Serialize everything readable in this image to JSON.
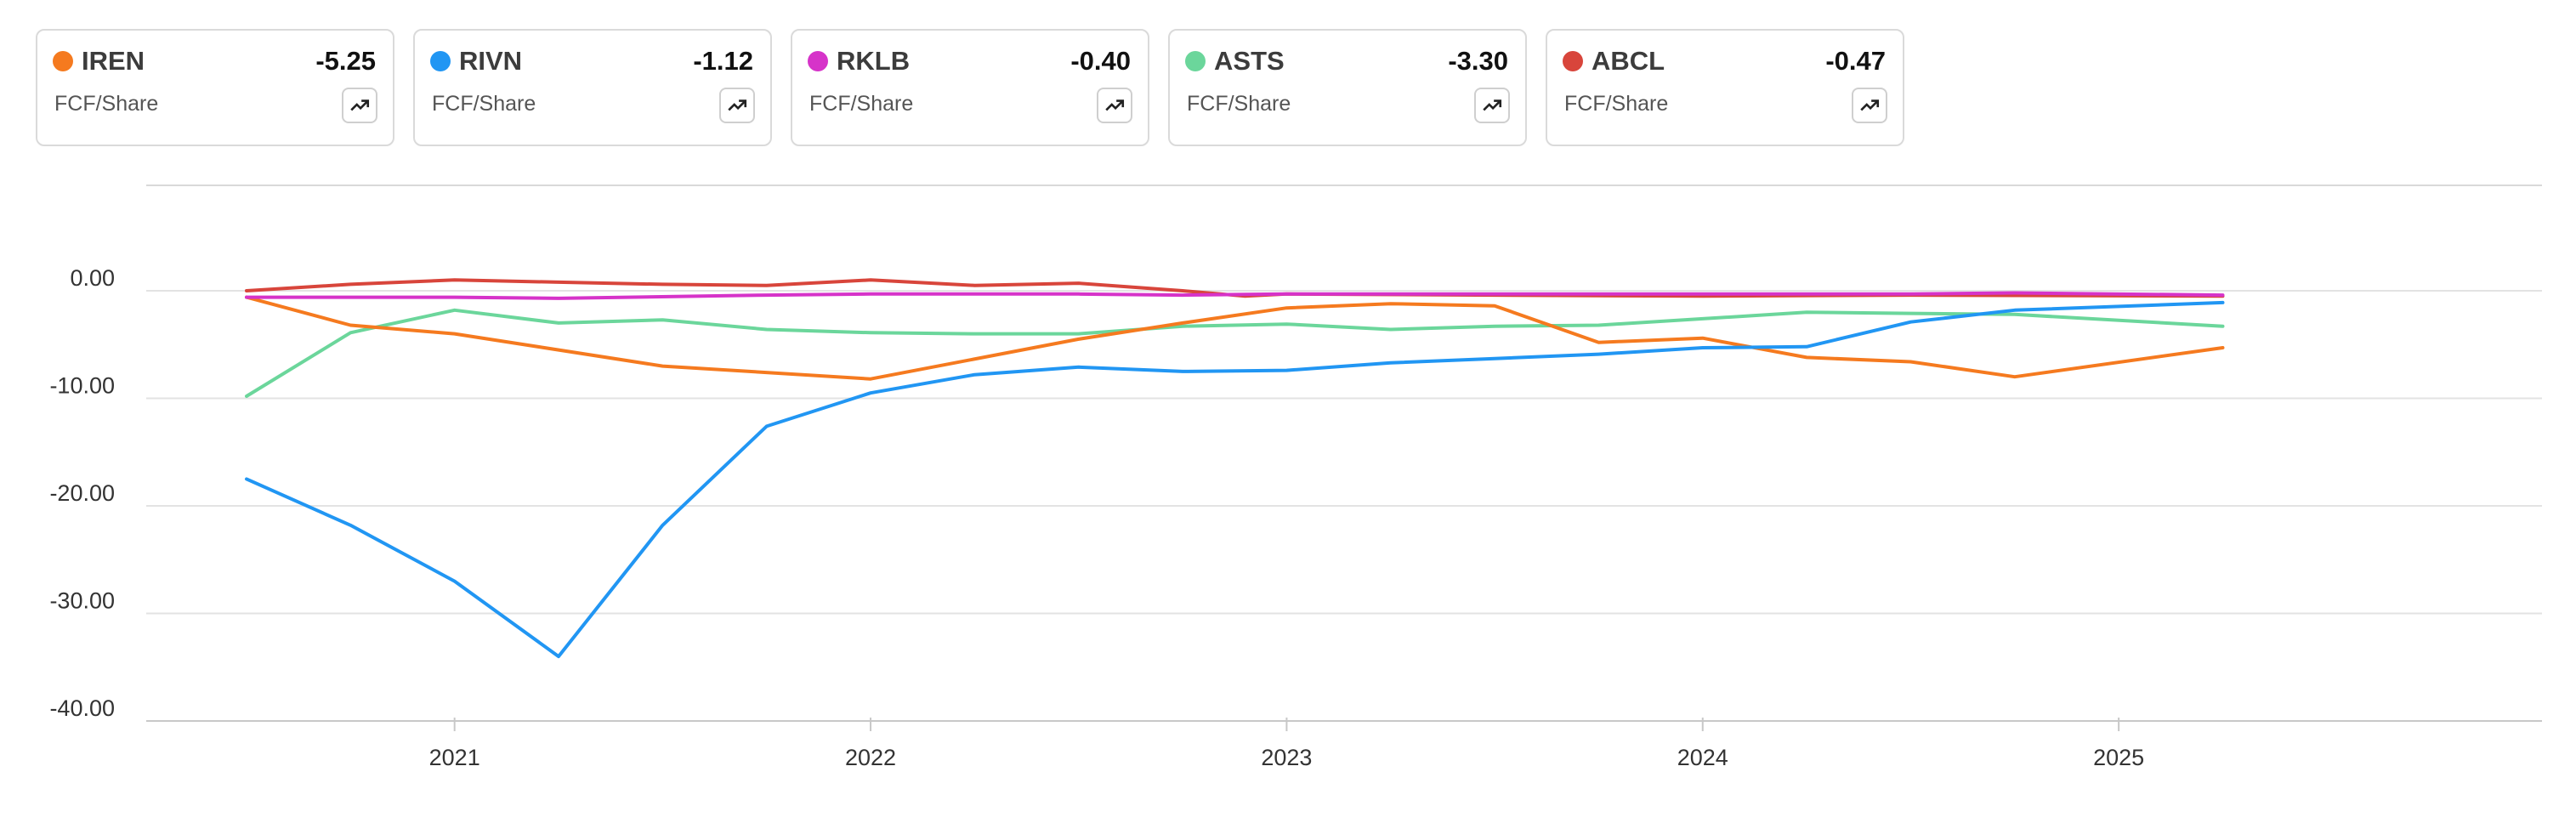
{
  "legend": [
    {
      "ticker": "IREN",
      "value": "-5.25",
      "metric": "FCF/Share",
      "color": "#F57A1F"
    },
    {
      "ticker": "RIVN",
      "value": "-1.12",
      "metric": "FCF/Share",
      "color": "#2196F3"
    },
    {
      "ticker": "RKLB",
      "value": "-0.40",
      "metric": "FCF/Share",
      "color": "#D633C9"
    },
    {
      "ticker": "ASTS",
      "value": "-3.30",
      "metric": "FCF/Share",
      "color": "#6BD69B"
    },
    {
      "ticker": "ABCL",
      "value": "-0.47",
      "metric": "FCF/Share",
      "color": "#D8453B"
    }
  ],
  "chart_data": {
    "type": "line",
    "ylim": [
      -40,
      10
    ],
    "yticks": [
      "0.00",
      "-10.00",
      "-20.00",
      "-30.00",
      "-40.00"
    ],
    "ytick_values": [
      0,
      -10,
      -20,
      -30,
      -40
    ],
    "xlim": [
      2020.5,
      2025.67
    ],
    "xticks": [
      2021,
      2022,
      2023,
      2024,
      2025
    ],
    "xtick_labels": [
      "2021",
      "2022",
      "2023",
      "2024",
      "2025"
    ],
    "grid": true,
    "x": [
      2020.5,
      2020.75,
      2021.0,
      2021.25,
      2021.5,
      2021.75,
      2022.0,
      2022.25,
      2022.5,
      2022.75,
      2023.0,
      2023.25,
      2023.5,
      2023.75,
      2024.0,
      2024.25,
      2024.5,
      2024.75,
      2025.0,
      2025.25
    ],
    "series": [
      {
        "name": "IREN",
        "color": "#F57A1F",
        "values": [
          null,
          null,
          null,
          null,
          null,
          null,
          null,
          null,
          null,
          null,
          null,
          null,
          null,
          null,
          null,
          null,
          null,
          null,
          null,
          null
        ],
        "points": [
          [
            2020.5,
            -0.6
          ],
          [
            2020.75,
            -3.2
          ],
          [
            2021.0,
            -4.0
          ],
          [
            2021.5,
            -7.0
          ],
          [
            2022.0,
            -8.2
          ],
          [
            2022.5,
            -4.5
          ],
          [
            2022.75,
            -3.0
          ],
          [
            2023.0,
            -1.6
          ],
          [
            2023.25,
            -1.2
          ],
          [
            2023.5,
            -1.4
          ],
          [
            2023.75,
            -4.8
          ],
          [
            2024.0,
            -4.4
          ],
          [
            2024.25,
            -6.2
          ],
          [
            2024.5,
            -6.6
          ],
          [
            2024.75,
            -8.0
          ],
          [
            2025.25,
            -5.3
          ]
        ]
      },
      {
        "name": "RIVN",
        "color": "#2196F3",
        "points": [
          [
            2020.5,
            -17.5
          ],
          [
            2020.75,
            -21.8
          ],
          [
            2021.0,
            -27.0
          ],
          [
            2021.25,
            -34.0
          ],
          [
            2021.5,
            -21.8
          ],
          [
            2021.75,
            -12.6
          ],
          [
            2022.0,
            -9.5
          ],
          [
            2022.25,
            -7.8
          ],
          [
            2022.5,
            -7.1
          ],
          [
            2022.75,
            -7.5
          ],
          [
            2023.0,
            -7.4
          ],
          [
            2023.25,
            -6.7
          ],
          [
            2023.5,
            -6.3
          ],
          [
            2023.75,
            -5.9
          ],
          [
            2024.0,
            -5.3
          ],
          [
            2024.25,
            -5.2
          ],
          [
            2024.5,
            -2.9
          ],
          [
            2024.75,
            -1.8
          ],
          [
            2025.25,
            -1.1
          ]
        ]
      },
      {
        "name": "RKLB",
        "color": "#D633C9",
        "points": [
          [
            2020.5,
            -0.6
          ],
          [
            2021.0,
            -0.6
          ],
          [
            2021.25,
            -0.7
          ],
          [
            2021.75,
            -0.4
          ],
          [
            2022.0,
            -0.3
          ],
          [
            2022.5,
            -0.3
          ],
          [
            2022.75,
            -0.4
          ],
          [
            2023.0,
            -0.3
          ],
          [
            2023.25,
            -0.3
          ],
          [
            2023.5,
            -0.3
          ],
          [
            2024.0,
            -0.3
          ],
          [
            2024.5,
            -0.3
          ],
          [
            2024.75,
            -0.2
          ],
          [
            2025.25,
            -0.4
          ]
        ]
      },
      {
        "name": "ASTS",
        "color": "#6BD69B",
        "points": [
          [
            2020.5,
            -9.8
          ],
          [
            2020.75,
            -3.9
          ],
          [
            2021.0,
            -1.8
          ],
          [
            2021.25,
            -3.0
          ],
          [
            2021.5,
            -2.7
          ],
          [
            2021.75,
            -3.6
          ],
          [
            2022.0,
            -3.9
          ],
          [
            2022.25,
            -4.0
          ],
          [
            2022.5,
            -4.0
          ],
          [
            2022.75,
            -3.3
          ],
          [
            2023.0,
            -3.1
          ],
          [
            2023.25,
            -3.6
          ],
          [
            2023.5,
            -3.3
          ],
          [
            2023.75,
            -3.2
          ],
          [
            2024.0,
            -2.6
          ],
          [
            2024.25,
            -2.0
          ],
          [
            2024.5,
            -2.1
          ],
          [
            2024.75,
            -2.2
          ],
          [
            2025.25,
            -3.3
          ]
        ]
      },
      {
        "name": "ABCL",
        "color": "#D8453B",
        "points": [
          [
            2020.5,
            0.0
          ],
          [
            2020.75,
            0.6
          ],
          [
            2021.0,
            1.0
          ],
          [
            2021.25,
            0.8
          ],
          [
            2021.5,
            0.6
          ],
          [
            2021.75,
            0.5
          ],
          [
            2022.0,
            1.0
          ],
          [
            2022.25,
            0.5
          ],
          [
            2022.5,
            0.7
          ],
          [
            2022.75,
            0.0
          ],
          [
            2022.9,
            -0.5
          ],
          [
            2023.0,
            -0.3
          ],
          [
            2023.5,
            -0.4
          ],
          [
            2024.0,
            -0.5
          ],
          [
            2024.5,
            -0.4
          ],
          [
            2025.25,
            -0.5
          ]
        ]
      }
    ]
  }
}
